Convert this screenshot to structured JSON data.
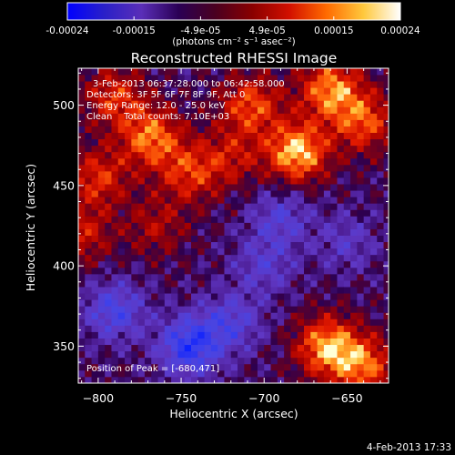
{
  "chart_data": {
    "type": "heatmap",
    "title": "Reconstructed RHESSI Image",
    "xlabel": "Heliocentric X (arcsec)",
    "ylabel": "Heliocentric Y (arcsec)",
    "xlim": [
      -812,
      -625
    ],
    "ylim": [
      327,
      523
    ],
    "x_ticks": [
      -800,
      -750,
      -700,
      -650
    ],
    "y_ticks": [
      350,
      400,
      450,
      500
    ],
    "colorbar": {
      "ticks": [
        "-0.00024",
        "-0.00015",
        "-4.9e-05",
        "4.9e-05",
        "0.00015",
        "0.00024"
      ],
      "unit_label": "(photons cm⁻² s⁻¹ asec⁻²)",
      "colors": [
        "#0000ff",
        "#2a20c8",
        "#5a2eb8",
        "#2a0055",
        "#4a0020",
        "#8a0000",
        "#d21000",
        "#ff6a00",
        "#ffc83c",
        "#ffffff"
      ]
    },
    "annotations": {
      "time_range": "3-Feb-2013 06:37:28.000 to 06:42:58.000",
      "detectors": "Detectors: 3F 5F 6F 7F 8F 9F, Att 0",
      "energy": "Energy Range: 12.0 - 25.0 keV",
      "clean": "Clean    Total counts: 7.10E+03",
      "peak": "Position of Peak = [-680,471]"
    },
    "peak_position": [
      -680,
      471
    ],
    "intensity_features": [
      {
        "x": -790,
        "y": 505,
        "level": 0.55
      },
      {
        "x": -768,
        "y": 480,
        "level": 0.75
      },
      {
        "x": -745,
        "y": 458,
        "level": 0.55
      },
      {
        "x": -708,
        "y": 500,
        "level": 0.65
      },
      {
        "x": -680,
        "y": 471,
        "level": 0.95
      },
      {
        "x": -660,
        "y": 510,
        "level": 0.8
      },
      {
        "x": -640,
        "y": 490,
        "level": 0.65
      },
      {
        "x": -800,
        "y": 455,
        "level": 0.55
      },
      {
        "x": -720,
        "y": 468,
        "level": 0.4
      },
      {
        "x": -765,
        "y": 425,
        "level": 0.35
      },
      {
        "x": -810,
        "y": 420,
        "level": 0.45
      },
      {
        "x": -662,
        "y": 350,
        "level": 0.85
      },
      {
        "x": -640,
        "y": 338,
        "level": 0.7
      },
      {
        "x": -745,
        "y": 350,
        "level": -0.75
      },
      {
        "x": -790,
        "y": 372,
        "level": -0.55
      },
      {
        "x": -720,
        "y": 365,
        "level": -0.45
      },
      {
        "x": -700,
        "y": 400,
        "level": -0.35
      },
      {
        "x": -690,
        "y": 430,
        "level": -0.4
      },
      {
        "x": -650,
        "y": 415,
        "level": -0.3
      }
    ]
  },
  "footer": {
    "date_stamp": "4-Feb-2013 17:33"
  }
}
